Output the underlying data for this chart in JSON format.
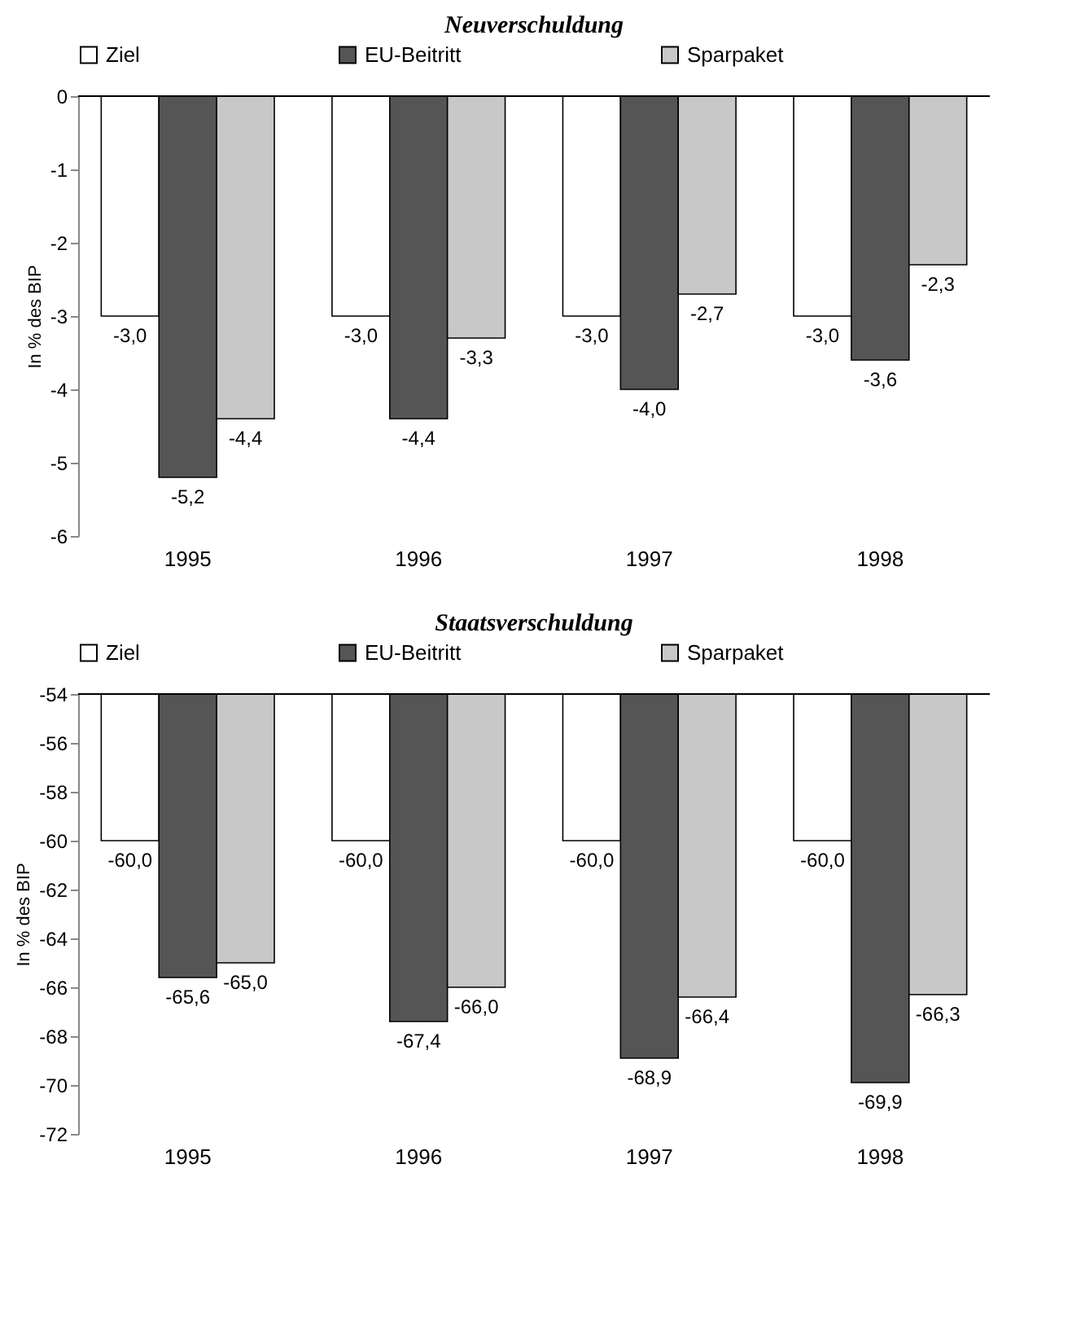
{
  "chart_data": [
    {
      "type": "bar",
      "title": "Neuverschuldung",
      "ylabel": "In % des BIP",
      "categories": [
        "1995",
        "1996",
        "1997",
        "1998"
      ],
      "ylim": [
        -6,
        0
      ],
      "yticks": [
        -6,
        -5,
        -4,
        -3,
        -2,
        -1,
        0
      ],
      "legend": "top",
      "grid": false,
      "series": [
        {
          "name": "Ziel",
          "color": "#ffffff",
          "values": [
            -3.0,
            -3.0,
            -3.0,
            -3.0
          ],
          "value_labels": [
            "-3,0",
            "-3,0",
            "-3,0",
            "-3,0"
          ]
        },
        {
          "name": "EU-Beitritt",
          "color": "#555555",
          "values": [
            -5.2,
            -4.4,
            -4.0,
            -3.6
          ],
          "value_labels": [
            "-5,2",
            "-4,4",
            "-4,0",
            "-3,6"
          ]
        },
        {
          "name": "Sparpaket",
          "color": "#c8c8c8",
          "values": [
            -4.4,
            -3.3,
            -2.7,
            -2.3
          ],
          "value_labels": [
            "-4,4",
            "-3,3",
            "-2,7",
            "-2,3"
          ]
        }
      ]
    },
    {
      "type": "bar",
      "title": "Staatsverschuldung",
      "ylabel": "In % des BIP",
      "categories": [
        "1995",
        "1996",
        "1997",
        "1998"
      ],
      "ylim": [
        -72,
        -54
      ],
      "yticks": [
        -72,
        -70,
        -68,
        -66,
        -64,
        -62,
        -60,
        -58,
        -56,
        -54
      ],
      "legend": "top",
      "grid": false,
      "series": [
        {
          "name": "Ziel",
          "color": "#ffffff",
          "values": [
            -60.0,
            -60.0,
            -60.0,
            -60.0
          ],
          "value_labels": [
            "-60,0",
            "-60,0",
            "-60,0",
            "-60,0"
          ]
        },
        {
          "name": "EU-Beitritt",
          "color": "#555555",
          "values": [
            -65.6,
            -67.4,
            -68.9,
            -69.9
          ],
          "value_labels": [
            "-65,6",
            "-67,4",
            "-68,9",
            "-69,9"
          ]
        },
        {
          "name": "Sparpaket",
          "color": "#c8c8c8",
          "values": [
            -65.0,
            -66.0,
            -66.4,
            -66.3
          ],
          "value_labels": [
            "-65,0",
            "-66,0",
            "-66,4",
            "-66,3"
          ]
        }
      ]
    }
  ]
}
